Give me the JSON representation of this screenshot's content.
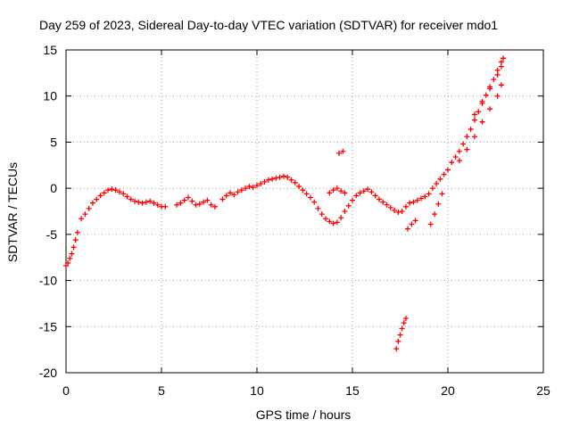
{
  "chart_data": {
    "type": "scatter",
    "title": "Day 259 of 2023, Sidereal Day-to-day VTEC variation (SDTVAR) for receiver mdo1",
    "xlabel": "GPS time / hours",
    "ylabel": "SDTVAR / TECUs",
    "xlim": [
      0,
      25
    ],
    "ylim": [
      -20,
      15
    ],
    "xticks": [
      0,
      5,
      10,
      15,
      20,
      25
    ],
    "yticks": [
      -20,
      -15,
      -10,
      -5,
      0,
      5,
      10,
      15
    ],
    "xtick_labels": [
      "0",
      "5",
      "10",
      "15",
      "20",
      "25"
    ],
    "ytick_labels": [
      "-20",
      "-15",
      "-10",
      "-5",
      "0",
      "5",
      "10",
      "15"
    ],
    "grid": true,
    "marker": "+",
    "series": [
      {
        "name": "mdo1",
        "color": "#ff0000",
        "points": [
          [
            0.0,
            -8.4
          ],
          [
            0.1,
            -8.1
          ],
          [
            0.2,
            -7.6
          ],
          [
            0.3,
            -7.1
          ],
          [
            0.4,
            -6.4
          ],
          [
            0.5,
            -5.6
          ],
          [
            0.6,
            -4.8
          ],
          [
            0.8,
            -3.3
          ],
          [
            1.0,
            -2.8
          ],
          [
            1.2,
            -2.2
          ],
          [
            1.4,
            -1.6
          ],
          [
            1.6,
            -1.2
          ],
          [
            1.8,
            -0.8
          ],
          [
            2.0,
            -0.5
          ],
          [
            2.2,
            -0.2
          ],
          [
            2.4,
            -0.1
          ],
          [
            2.6,
            -0.2
          ],
          [
            2.8,
            -0.4
          ],
          [
            3.0,
            -0.6
          ],
          [
            3.2,
            -0.9
          ],
          [
            3.4,
            -1.2
          ],
          [
            3.6,
            -1.4
          ],
          [
            3.8,
            -1.5
          ],
          [
            4.0,
            -1.6
          ],
          [
            4.2,
            -1.5
          ],
          [
            4.4,
            -1.4
          ],
          [
            4.6,
            -1.6
          ],
          [
            4.8,
            -1.8
          ],
          [
            5.0,
            -2.0
          ],
          [
            5.2,
            -2.0
          ],
          [
            5.8,
            -1.8
          ],
          [
            6.0,
            -1.6
          ],
          [
            6.2,
            -1.3
          ],
          [
            6.4,
            -1.0
          ],
          [
            6.6,
            -1.4
          ],
          [
            6.8,
            -1.8
          ],
          [
            7.0,
            -1.7
          ],
          [
            7.2,
            -1.5
          ],
          [
            7.4,
            -1.3
          ],
          [
            7.6,
            -1.8
          ],
          [
            7.8,
            -2.0
          ],
          [
            8.2,
            -1.2
          ],
          [
            8.4,
            -0.8
          ],
          [
            8.6,
            -0.5
          ],
          [
            8.8,
            -0.7
          ],
          [
            9.0,
            -0.4
          ],
          [
            9.2,
            -0.2
          ],
          [
            9.4,
            0.0
          ],
          [
            9.6,
            0.2
          ],
          [
            9.8,
            0.1
          ],
          [
            10.0,
            0.3
          ],
          [
            10.2,
            0.5
          ],
          [
            10.4,
            0.7
          ],
          [
            10.6,
            0.9
          ],
          [
            10.8,
            1.0
          ],
          [
            11.0,
            1.1
          ],
          [
            11.2,
            1.2
          ],
          [
            11.4,
            1.3
          ],
          [
            11.6,
            1.2
          ],
          [
            11.8,
            0.9
          ],
          [
            12.0,
            0.6
          ],
          [
            12.2,
            0.2
          ],
          [
            12.4,
            -0.2
          ],
          [
            12.6,
            -0.6
          ],
          [
            12.8,
            -1.0
          ],
          [
            13.0,
            -1.5
          ],
          [
            13.2,
            -2.2
          ],
          [
            13.4,
            -2.8
          ],
          [
            13.6,
            -3.3
          ],
          [
            13.8,
            -3.6
          ],
          [
            14.0,
            -3.8
          ],
          [
            14.2,
            -3.7
          ],
          [
            14.4,
            -3.2
          ],
          [
            14.6,
            -2.5
          ],
          [
            14.8,
            -1.9
          ],
          [
            15.0,
            -1.3
          ],
          [
            15.2,
            -0.8
          ],
          [
            15.4,
            -0.5
          ],
          [
            14.3,
            3.8
          ],
          [
            14.5,
            4.0
          ],
          [
            13.8,
            -0.5
          ],
          [
            14.0,
            -0.2
          ],
          [
            14.2,
            0.0
          ],
          [
            14.4,
            -0.3
          ],
          [
            14.6,
            -0.5
          ],
          [
            15.6,
            -0.3
          ],
          [
            15.8,
            -0.1
          ],
          [
            16.0,
            -0.4
          ],
          [
            16.2,
            -0.8
          ],
          [
            16.4,
            -1.2
          ],
          [
            16.6,
            -1.5
          ],
          [
            16.8,
            -1.8
          ],
          [
            17.0,
            -2.1
          ],
          [
            17.2,
            -2.4
          ],
          [
            17.4,
            -2.6
          ],
          [
            17.6,
            -2.5
          ],
          [
            17.8,
            -2.0
          ],
          [
            18.0,
            -1.6
          ],
          [
            18.2,
            -1.5
          ],
          [
            18.4,
            -1.3
          ],
          [
            18.6,
            -1.1
          ],
          [
            18.8,
            -0.9
          ],
          [
            19.0,
            -0.6
          ],
          [
            17.3,
            -17.4
          ],
          [
            17.4,
            -16.6
          ],
          [
            17.5,
            -15.9
          ],
          [
            17.6,
            -15.2
          ],
          [
            17.7,
            -14.6
          ],
          [
            17.8,
            -14.1
          ],
          [
            17.9,
            -4.4
          ],
          [
            18.1,
            -3.9
          ],
          [
            18.3,
            -3.5
          ],
          [
            19.1,
            -3.9
          ],
          [
            19.3,
            -2.8
          ],
          [
            19.5,
            -1.7
          ],
          [
            19.7,
            -0.6
          ],
          [
            19.2,
            0.0
          ],
          [
            19.4,
            0.5
          ],
          [
            19.6,
            1.0
          ],
          [
            19.8,
            1.5
          ],
          [
            20.0,
            2.0
          ],
          [
            20.2,
            2.8
          ],
          [
            20.4,
            3.4
          ],
          [
            20.6,
            4.0
          ],
          [
            20.8,
            4.8
          ],
          [
            21.0,
            5.6
          ],
          [
            21.2,
            6.4
          ],
          [
            21.4,
            7.4
          ],
          [
            21.6,
            8.3
          ],
          [
            21.8,
            9.2
          ],
          [
            22.0,
            10.1
          ],
          [
            22.2,
            11.0
          ],
          [
            22.4,
            11.8
          ],
          [
            22.6,
            12.8
          ],
          [
            22.8,
            13.7
          ],
          [
            22.9,
            14.1
          ],
          [
            20.6,
            3.0
          ],
          [
            21.0,
            4.2
          ],
          [
            21.4,
            5.6
          ],
          [
            21.8,
            7.2
          ],
          [
            22.2,
            8.6
          ],
          [
            22.6,
            10.0
          ],
          [
            22.8,
            11.2
          ],
          [
            21.4,
            8.0
          ],
          [
            21.8,
            9.4
          ],
          [
            22.2,
            10.8
          ],
          [
            22.6,
            12.3
          ],
          [
            22.8,
            13.2
          ]
        ]
      }
    ]
  }
}
